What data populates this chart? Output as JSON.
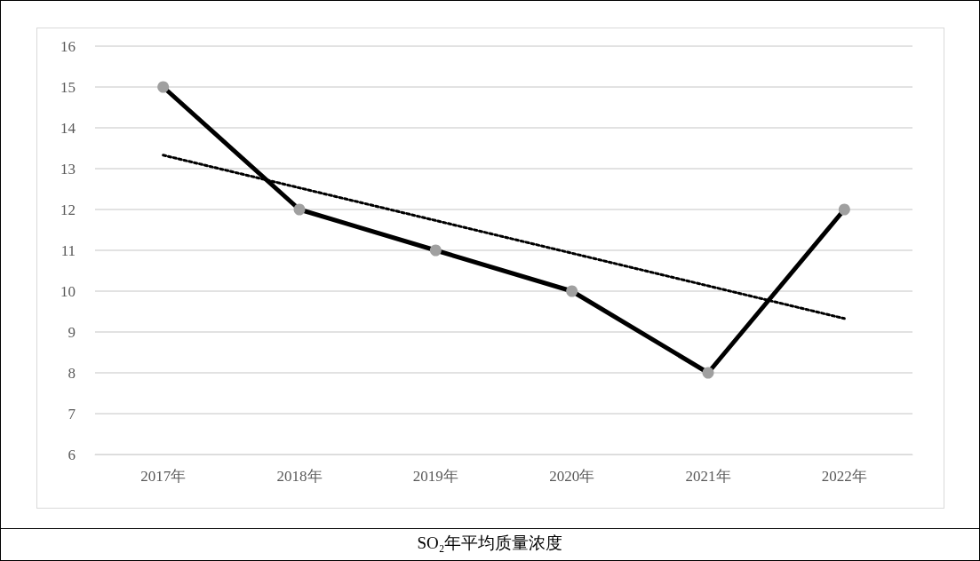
{
  "chart_data": {
    "type": "line",
    "title": "SO₂年平均质量浓度",
    "categories": [
      "2017年",
      "2018年",
      "2019年",
      "2020年",
      "2021年",
      "2022年"
    ],
    "series": [
      {
        "color": "#000000",
        "values": [
          15,
          12,
          11,
          10,
          8,
          12
        ],
        "marker": "circle",
        "line_style": "solid"
      },
      {
        "color": "#000000",
        "values": [
          13.33,
          12.53,
          11.73,
          10.93,
          10.13,
          9.33
        ],
        "marker": "none",
        "line_style": "dotted"
      }
    ],
    "ylim": [
      6,
      16
    ],
    "yticks": [
      6,
      7,
      8,
      9,
      10,
      11,
      12,
      13,
      14,
      15,
      16
    ],
    "grid": "y"
  }
}
